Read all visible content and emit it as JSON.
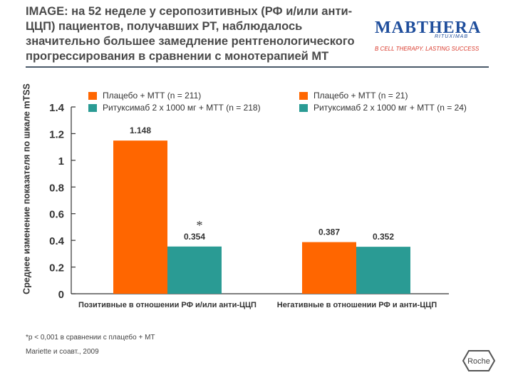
{
  "slide": {
    "title": "IMAGE: на 52 неделе у серопозитивных (РФ и/или анти-ЦЦП) пациентов, получавших РТ, наблюдалось значительно большее замедление рентгенологического прогрессирования в сравнении с монотерапией МТ",
    "footnote_1": "*p < 0,001 в сравнении с плацебо + МТ",
    "footnote_2": "Mariette и соавт., 2009"
  },
  "logo": {
    "wordmark": "MABTHERA",
    "subline": "RITUXIMAB",
    "tagline": "B CELL THERAPY. LASTING SUCCESS",
    "brand_color": "#1f4e9c",
    "tagline_color": "#d9382a"
  },
  "roche_logo": {
    "text": "Roche"
  },
  "chart_data": {
    "type": "bar",
    "ylabel": "Среднее изменение показателя по шкале mTSS",
    "ylim": [
      0,
      1.4
    ],
    "yticks": [
      0,
      0.2,
      0.4,
      0.6,
      0.8,
      1,
      1.2,
      1.4
    ],
    "ytick_labels": [
      "0",
      "0.2",
      "0.4",
      "0.6",
      "0.8",
      "1",
      "1.2",
      "1.4"
    ],
    "categories": [
      "Позитивные в отношении РФ и/или анти-ЦЦП",
      "Негативные в отношении РФ и анти-ЦЦП"
    ],
    "groups": [
      {
        "category": "Позитивные в отношении РФ и/или анти-ЦЦП",
        "legend": [
          "Плацебо + МТТ (n = 211)",
          "Ритуксимаб 2 x 1000 мг + МТТ (n = 218)"
        ],
        "values": [
          1.148,
          0.354
        ],
        "labels": [
          "1.148",
          "0.354"
        ],
        "significance": "*"
      },
      {
        "category": "Негативные в отношении РФ и анти-ЦЦП",
        "legend": [
          "Плацебо + МТТ (n = 21)",
          "Ритуксимаб 2 x 1000 мг + МТТ (n = 24)"
        ],
        "values": [
          0.387,
          0.352
        ],
        "labels": [
          "0.387",
          "0.352"
        ],
        "significance": ""
      }
    ],
    "colors": [
      "#ff6600",
      "#2a9b94"
    ],
    "legend_placement": "top",
    "grid": false
  }
}
